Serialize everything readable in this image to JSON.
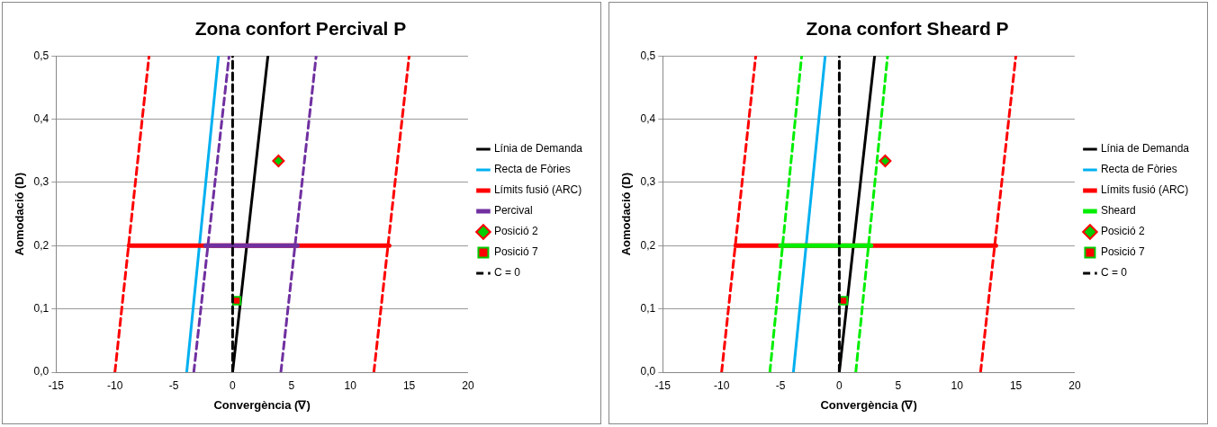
{
  "chart_data": [
    {
      "type": "line",
      "title": "Zona confort Percival P",
      "xlabel": "Convergència (∇)",
      "ylabel": "Aomodació (D)",
      "xlim": [
        -15,
        20
      ],
      "xticks": [
        -15,
        -10,
        -5,
        0,
        5,
        10,
        15,
        20
      ],
      "ylim": [
        0,
        0.5
      ],
      "yticks": [
        {
          "value": 0,
          "label": "0,0"
        },
        {
          "value": 0.1,
          "label": "0,1"
        },
        {
          "value": 0.2,
          "label": "0,2"
        },
        {
          "value": 0.3,
          "label": "0,3"
        },
        {
          "value": 0.4,
          "label": "0,4"
        },
        {
          "value": 0.5,
          "label": "0,5"
        }
      ],
      "grid": "y",
      "legend": "right",
      "series": [
        {
          "name": "Línia de Demanda",
          "type": "line",
          "color": "#000000",
          "x": [
            0,
            3
          ],
          "values": [
            0,
            0.5
          ]
        },
        {
          "name": "Recta de Fòries",
          "type": "line",
          "color": "#00b0f0",
          "x": [
            -3.9,
            -1.2
          ],
          "values": [
            0,
            0.5
          ]
        },
        {
          "name": "Límits fusió (ARC)",
          "type": "line",
          "color": "#ff0000",
          "x": [
            -8.8,
            13.3
          ],
          "values": [
            0.2,
            0.2
          ]
        },
        {
          "name": "Percival",
          "type": "line",
          "color": "#7030a0",
          "x": [
            -2.3,
            5.5
          ],
          "values": [
            0.2,
            0.2
          ]
        },
        {
          "name": "Posició 2",
          "type": "scatter",
          "marker": "diamond",
          "color": "#00cc00",
          "x": [
            3.9
          ],
          "values": [
            0.334
          ]
        },
        {
          "name": "Posició 7",
          "type": "scatter",
          "marker": "square",
          "color": "#ff0000",
          "x": [
            0.35
          ],
          "values": [
            0.113
          ]
        },
        {
          "name": "C = 0",
          "type": "line",
          "line_style": "dashed",
          "color": "#000000",
          "x": [
            0,
            0
          ],
          "values": [
            0,
            0.5
          ]
        },
        {
          "type": "line",
          "line_style": "dashed",
          "color": "#ff0000",
          "x": [
            -10,
            -7.1
          ],
          "values": [
            0,
            0.5
          ]
        },
        {
          "type": "line",
          "line_style": "dashed",
          "color": "#ff0000",
          "x": [
            12,
            15
          ],
          "values": [
            0,
            0.5
          ]
        },
        {
          "type": "line",
          "line_style": "dashed",
          "color": "#7030a0",
          "x": [
            -3.3,
            -0.3
          ],
          "values": [
            0,
            0.5
          ]
        },
        {
          "type": "line",
          "line_style": "dashed",
          "color": "#7030a0",
          "x": [
            4.1,
            7.1
          ],
          "values": [
            0,
            0.5
          ]
        }
      ]
    },
    {
      "type": "line",
      "title": "Zona confort Sheard P",
      "xlabel": "Convergència (∇)",
      "ylabel": "Aomodació (D)",
      "xlim": [
        -15,
        20
      ],
      "xticks": [
        -15,
        -10,
        -5,
        0,
        5,
        10,
        15,
        20
      ],
      "ylim": [
        0,
        0.5
      ],
      "yticks": [
        {
          "value": 0,
          "label": "0,0"
        },
        {
          "value": 0.1,
          "label": "0,1"
        },
        {
          "value": 0.2,
          "label": "0,2"
        },
        {
          "value": 0.3,
          "label": "0,3"
        },
        {
          "value": 0.4,
          "label": "0,4"
        },
        {
          "value": 0.5,
          "label": "0,5"
        }
      ],
      "grid": "y",
      "legend": "right",
      "series": [
        {
          "name": "Línia de Demanda",
          "type": "line",
          "color": "#000000",
          "x": [
            0,
            3
          ],
          "values": [
            0,
            0.5
          ]
        },
        {
          "name": "Recta de Fòries",
          "type": "line",
          "color": "#00b0f0",
          "x": [
            -3.9,
            -1.2
          ],
          "values": [
            0,
            0.5
          ]
        },
        {
          "name": "Límits fusió (ARC)",
          "type": "line",
          "color": "#ff0000",
          "x": [
            -8.8,
            13.3
          ],
          "values": [
            0.2,
            0.2
          ]
        },
        {
          "name": "Sheard",
          "type": "line",
          "color": "#00ee00",
          "x": [
            -5,
            2.7
          ],
          "values": [
            0.2,
            0.2
          ]
        },
        {
          "name": "Posició 2",
          "type": "scatter",
          "marker": "diamond",
          "color": "#00cc00",
          "x": [
            3.9
          ],
          "values": [
            0.334
          ]
        },
        {
          "name": "Posició 7",
          "type": "scatter",
          "marker": "square",
          "color": "#ff0000",
          "x": [
            0.35
          ],
          "values": [
            0.113
          ]
        },
        {
          "name": "C = 0",
          "type": "line",
          "line_style": "dashed",
          "color": "#000000",
          "x": [
            0,
            0
          ],
          "values": [
            0,
            0.5
          ]
        },
        {
          "type": "line",
          "line_style": "dashed",
          "color": "#ff0000",
          "x": [
            -10,
            -7.1
          ],
          "values": [
            0,
            0.5
          ]
        },
        {
          "type": "line",
          "line_style": "dashed",
          "color": "#ff0000",
          "x": [
            12,
            15
          ],
          "values": [
            0,
            0.5
          ]
        },
        {
          "type": "line",
          "line_style": "dashed",
          "color": "#00ee00",
          "x": [
            -5.9,
            -3.2
          ],
          "values": [
            0,
            0.5
          ]
        },
        {
          "type": "line",
          "line_style": "dashed",
          "color": "#00ee00",
          "x": [
            1.4,
            4.1
          ],
          "values": [
            0,
            0.5
          ]
        }
      ]
    }
  ]
}
